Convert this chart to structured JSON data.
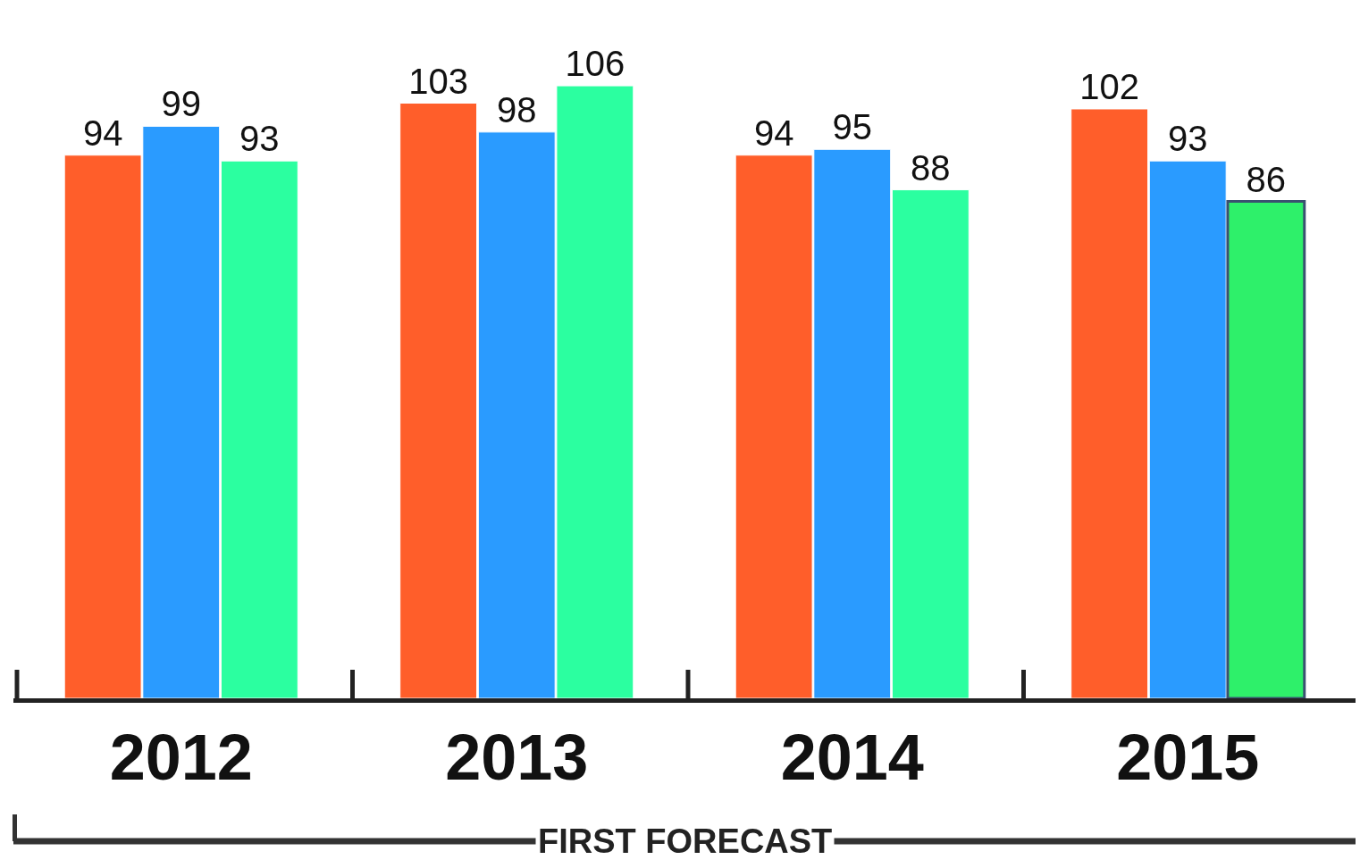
{
  "chart_data": {
    "type": "bar",
    "categories": [
      "2012",
      "2013",
      "2014",
      "2015"
    ],
    "series": [
      {
        "color": "#ff5e2a",
        "values": [
          94,
          103,
          94,
          102
        ]
      },
      {
        "color": "#2a9bff",
        "values": [
          99,
          98,
          95,
          93
        ]
      },
      {
        "color": "#2bffa0",
        "colors": [
          "#2bffa0",
          "#2bffa0",
          "#2bffa0",
          "#2ef06a"
        ],
        "values": [
          93,
          106,
          88,
          86
        ]
      }
    ],
    "data_labels": true,
    "grid": false,
    "annotations": [
      "FIRST FORECAST"
    ]
  }
}
